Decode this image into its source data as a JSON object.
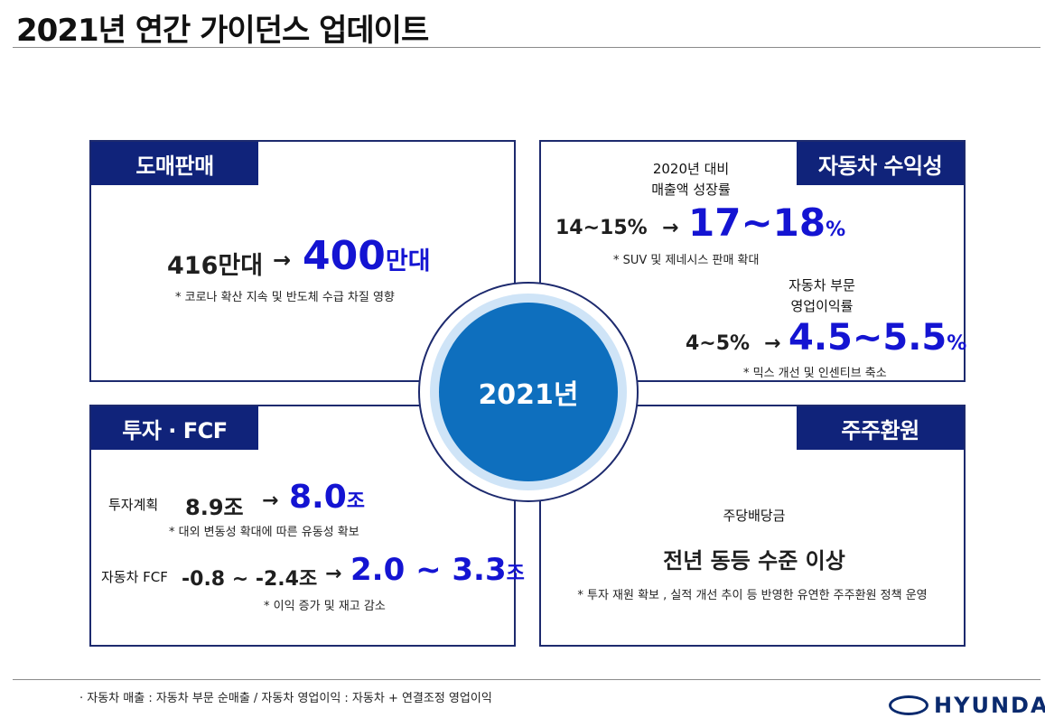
{
  "title": "2021년 연간 가이던스 업데이트",
  "center": {
    "label": "2021년"
  },
  "wholesale": {
    "tag": "도매판매",
    "from": "416만대",
    "arrow": "→",
    "to_num": "400",
    "to_unit": "만대",
    "note": "* 코로나 확산 지속 및 반도체 수급 차질 영향"
  },
  "profit": {
    "tag": "자동차 수익성",
    "rev_label_1": "2020년 대비",
    "rev_label_2": "매출액 성장률",
    "rev_from": "14~15%",
    "arrow": "→",
    "rev_to_num": "17~18",
    "rev_to_unit": "%",
    "rev_note": "* SUV 및 제네시스 판매 확대",
    "op_label_1": "자동차 부문",
    "op_label_2": "영업이익률",
    "op_from": "4~5%",
    "op_to_num": "4.5~5.5",
    "op_to_unit": "%",
    "op_note": "* 믹스 개선 및 인센티브 축소"
  },
  "invest": {
    "tag": "투자 · FCF",
    "plan_label": "투자계획",
    "plan_from": "8.9조",
    "arrow": "→",
    "plan_to_num": "8.0",
    "plan_to_unit": "조",
    "plan_note": "* 대외 변동성 확대에 따른 유동성 확보",
    "fcf_label": "자동차 FCF",
    "fcf_from": "-0.8 ~ -2.4조",
    "fcf_to_num": "2.0 ~ 3.3",
    "fcf_to_unit": "조",
    "fcf_note": "*  이익 증가 및 재고 감소"
  },
  "shareholder": {
    "tag": "주주환원",
    "label": "주당배당금",
    "headline": "전년 동등 수준 이상",
    "note": "* 투자 재원 확보 , 실적 개선 추이 등 반영한 유연한 주주환원 정책 운영"
  },
  "footnote": "· 자동차 매출 : 자동차 부문 순매출 / 자동차 영업이익 : 자동차 + 연결조정 영업이익",
  "logo": {
    "text": "HYUNDAI"
  },
  "colors": {
    "navy": "#10237a",
    "blue": "#1414d2",
    "circle": "#0e6fbe",
    "halo": "#cfe4f7"
  }
}
